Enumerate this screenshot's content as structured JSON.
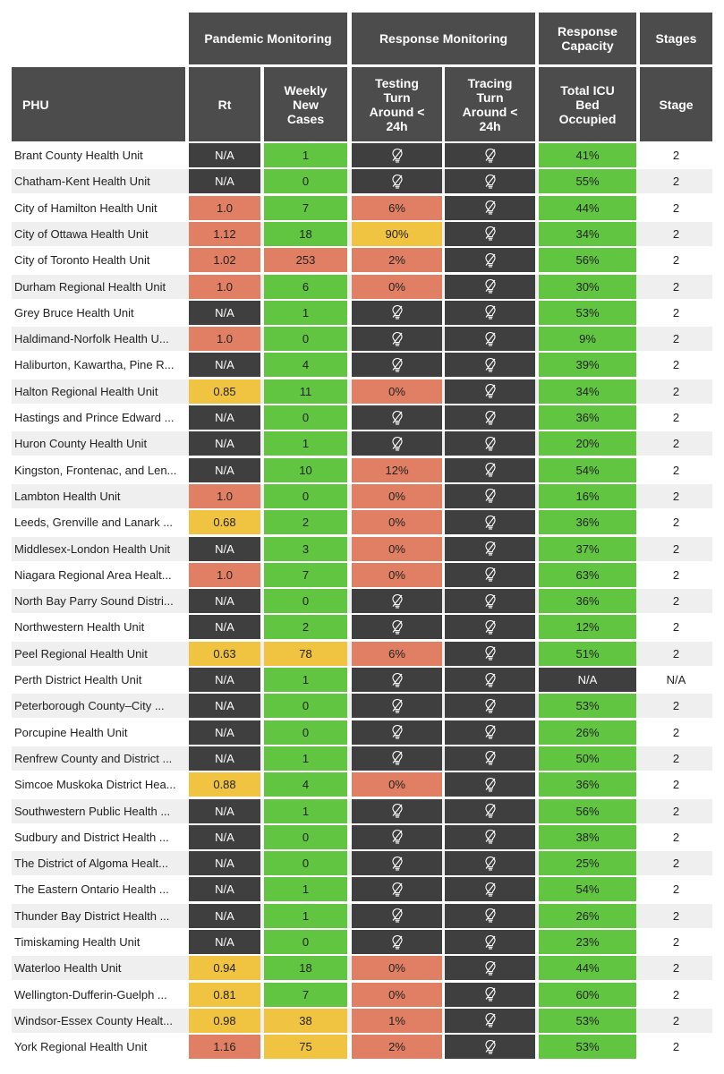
{
  "header": {
    "groups": {
      "pandemic": "Pandemic Monitoring",
      "response": "Response Monitoring",
      "capacity": "Response Capacity",
      "stages": "Stages"
    },
    "columns": {
      "phu": "PHU",
      "rt": "Rt",
      "weekly": "Weekly New Cases",
      "testing": "Testing Turn Around < 24h",
      "tracing": "Tracing Turn Around < 24h",
      "icu": "Total ICU Bed Occupied",
      "stage": "Stage"
    }
  },
  "colors": {
    "header_bg": "#4c4c4c",
    "green": "#62c542",
    "red": "#e07f63",
    "yellow": "#f0c440",
    "dark": "#3f3f3f",
    "stripe": "#efefef"
  },
  "chart_data": {
    "type": "table",
    "columns": [
      "PHU",
      "Rt",
      "Weekly New Cases",
      "Testing Turn Around < 24h",
      "Tracing Turn Around < 24h",
      "Total ICU Bed Occupied",
      "Stage"
    ],
    "rows": [
      {
        "phu": "Brant County Health Unit",
        "rt": "N/A",
        "rt_c": "dark",
        "weekly": "1",
        "weekly_c": "green",
        "testing": "",
        "testing_c": "dark",
        "tracing": "",
        "tracing_c": "dark",
        "icu": "41%",
        "icu_c": "green",
        "stage": "2"
      },
      {
        "phu": "Chatham-Kent Health Unit",
        "rt": "N/A",
        "rt_c": "dark",
        "weekly": "0",
        "weekly_c": "green",
        "testing": "",
        "testing_c": "dark",
        "tracing": "",
        "tracing_c": "dark",
        "icu": "55%",
        "icu_c": "green",
        "stage": "2"
      },
      {
        "phu": "City of Hamilton Health Unit",
        "rt": "1.0",
        "rt_c": "red",
        "weekly": "7",
        "weekly_c": "green",
        "testing": "6%",
        "testing_c": "red",
        "tracing": "",
        "tracing_c": "dark",
        "icu": "44%",
        "icu_c": "green",
        "stage": "2"
      },
      {
        "phu": "City of Ottawa Health Unit",
        "rt": "1.12",
        "rt_c": "red",
        "weekly": "18",
        "weekly_c": "green",
        "testing": "90%",
        "testing_c": "yellow",
        "tracing": "",
        "tracing_c": "dark",
        "icu": "34%",
        "icu_c": "green",
        "stage": "2"
      },
      {
        "phu": "City of Toronto Health Unit",
        "rt": "1.02",
        "rt_c": "red",
        "weekly": "253",
        "weekly_c": "red",
        "testing": "2%",
        "testing_c": "red",
        "tracing": "",
        "tracing_c": "dark",
        "icu": "56%",
        "icu_c": "green",
        "stage": "2"
      },
      {
        "phu": "Durham Regional Health Unit",
        "rt": "1.0",
        "rt_c": "red",
        "weekly": "6",
        "weekly_c": "green",
        "testing": "0%",
        "testing_c": "red",
        "tracing": "",
        "tracing_c": "dark",
        "icu": "30%",
        "icu_c": "green",
        "stage": "2"
      },
      {
        "phu": "Grey Bruce Health Unit",
        "rt": "N/A",
        "rt_c": "dark",
        "weekly": "1",
        "weekly_c": "green",
        "testing": "",
        "testing_c": "dark",
        "tracing": "",
        "tracing_c": "dark",
        "icu": "53%",
        "icu_c": "green",
        "stage": "2"
      },
      {
        "phu": "Haldimand-Norfolk Health U...",
        "rt": "1.0",
        "rt_c": "red",
        "weekly": "0",
        "weekly_c": "green",
        "testing": "",
        "testing_c": "dark",
        "tracing": "",
        "tracing_c": "dark",
        "icu": "9%",
        "icu_c": "green",
        "stage": "2"
      },
      {
        "phu": "Haliburton, Kawartha, Pine R...",
        "rt": "N/A",
        "rt_c": "dark",
        "weekly": "4",
        "weekly_c": "green",
        "testing": "",
        "testing_c": "dark",
        "tracing": "",
        "tracing_c": "dark",
        "icu": "39%",
        "icu_c": "green",
        "stage": "2"
      },
      {
        "phu": "Halton Regional Health Unit",
        "rt": "0.85",
        "rt_c": "yellow",
        "weekly": "11",
        "weekly_c": "green",
        "testing": "0%",
        "testing_c": "red",
        "tracing": "",
        "tracing_c": "dark",
        "icu": "34%",
        "icu_c": "green",
        "stage": "2"
      },
      {
        "phu": "Hastings and Prince Edward ...",
        "rt": "N/A",
        "rt_c": "dark",
        "weekly": "0",
        "weekly_c": "green",
        "testing": "",
        "testing_c": "dark",
        "tracing": "",
        "tracing_c": "dark",
        "icu": "36%",
        "icu_c": "green",
        "stage": "2"
      },
      {
        "phu": "Huron County Health Unit",
        "rt": "N/A",
        "rt_c": "dark",
        "weekly": "1",
        "weekly_c": "green",
        "testing": "",
        "testing_c": "dark",
        "tracing": "",
        "tracing_c": "dark",
        "icu": "20%",
        "icu_c": "green",
        "stage": "2"
      },
      {
        "phu": "Kingston, Frontenac, and Len...",
        "rt": "N/A",
        "rt_c": "dark",
        "weekly": "10",
        "weekly_c": "green",
        "testing": "12%",
        "testing_c": "red",
        "tracing": "",
        "tracing_c": "dark",
        "icu": "54%",
        "icu_c": "green",
        "stage": "2"
      },
      {
        "phu": "Lambton Health Unit",
        "rt": "1.0",
        "rt_c": "red",
        "weekly": "0",
        "weekly_c": "green",
        "testing": "0%",
        "testing_c": "red",
        "tracing": "",
        "tracing_c": "dark",
        "icu": "16%",
        "icu_c": "green",
        "stage": "2"
      },
      {
        "phu": "Leeds, Grenville and Lanark ...",
        "rt": "0.68",
        "rt_c": "yellow",
        "weekly": "2",
        "weekly_c": "green",
        "testing": "0%",
        "testing_c": "red",
        "tracing": "",
        "tracing_c": "dark",
        "icu": "36%",
        "icu_c": "green",
        "stage": "2"
      },
      {
        "phu": "Middlesex-London Health Unit",
        "rt": "N/A",
        "rt_c": "dark",
        "weekly": "3",
        "weekly_c": "green",
        "testing": "0%",
        "testing_c": "red",
        "tracing": "",
        "tracing_c": "dark",
        "icu": "37%",
        "icu_c": "green",
        "stage": "2"
      },
      {
        "phu": "Niagara Regional Area Healt...",
        "rt": "1.0",
        "rt_c": "red",
        "weekly": "7",
        "weekly_c": "green",
        "testing": "0%",
        "testing_c": "red",
        "tracing": "",
        "tracing_c": "dark",
        "icu": "63%",
        "icu_c": "green",
        "stage": "2"
      },
      {
        "phu": "North Bay Parry Sound Distri...",
        "rt": "N/A",
        "rt_c": "dark",
        "weekly": "0",
        "weekly_c": "green",
        "testing": "",
        "testing_c": "dark",
        "tracing": "",
        "tracing_c": "dark",
        "icu": "36%",
        "icu_c": "green",
        "stage": "2"
      },
      {
        "phu": "Northwestern Health Unit",
        "rt": "N/A",
        "rt_c": "dark",
        "weekly": "2",
        "weekly_c": "green",
        "testing": "",
        "testing_c": "dark",
        "tracing": "",
        "tracing_c": "dark",
        "icu": "12%",
        "icu_c": "green",
        "stage": "2"
      },
      {
        "phu": "Peel Regional Health Unit",
        "rt": "0.63",
        "rt_c": "yellow",
        "weekly": "78",
        "weekly_c": "yellow",
        "testing": "6%",
        "testing_c": "red",
        "tracing": "",
        "tracing_c": "dark",
        "icu": "51%",
        "icu_c": "green",
        "stage": "2"
      },
      {
        "phu": "Perth District Health Unit",
        "rt": "N/A",
        "rt_c": "dark",
        "weekly": "1",
        "weekly_c": "green",
        "testing": "",
        "testing_c": "dark",
        "tracing": "",
        "tracing_c": "dark",
        "icu": "N/A",
        "icu_c": "dark",
        "stage": "N/A"
      },
      {
        "phu": "Peterborough County–City ...",
        "rt": "N/A",
        "rt_c": "dark",
        "weekly": "0",
        "weekly_c": "green",
        "testing": "",
        "testing_c": "dark",
        "tracing": "",
        "tracing_c": "dark",
        "icu": "53%",
        "icu_c": "green",
        "stage": "2"
      },
      {
        "phu": "Porcupine Health Unit",
        "rt": "N/A",
        "rt_c": "dark",
        "weekly": "0",
        "weekly_c": "green",
        "testing": "",
        "testing_c": "dark",
        "tracing": "",
        "tracing_c": "dark",
        "icu": "26%",
        "icu_c": "green",
        "stage": "2"
      },
      {
        "phu": "Renfrew County and District ...",
        "rt": "N/A",
        "rt_c": "dark",
        "weekly": "1",
        "weekly_c": "green",
        "testing": "",
        "testing_c": "dark",
        "tracing": "",
        "tracing_c": "dark",
        "icu": "50%",
        "icu_c": "green",
        "stage": "2"
      },
      {
        "phu": "Simcoe Muskoka District Hea...",
        "rt": "0.88",
        "rt_c": "yellow",
        "weekly": "4",
        "weekly_c": "green",
        "testing": "0%",
        "testing_c": "red",
        "tracing": "",
        "tracing_c": "dark",
        "icu": "36%",
        "icu_c": "green",
        "stage": "2"
      },
      {
        "phu": "Southwestern Public Health ...",
        "rt": "N/A",
        "rt_c": "dark",
        "weekly": "1",
        "weekly_c": "green",
        "testing": "",
        "testing_c": "dark",
        "tracing": "",
        "tracing_c": "dark",
        "icu": "56%",
        "icu_c": "green",
        "stage": "2"
      },
      {
        "phu": "Sudbury and District Health ...",
        "rt": "N/A",
        "rt_c": "dark",
        "weekly": "0",
        "weekly_c": "green",
        "testing": "",
        "testing_c": "dark",
        "tracing": "",
        "tracing_c": "dark",
        "icu": "38%",
        "icu_c": "green",
        "stage": "2"
      },
      {
        "phu": "The District of Algoma Healt...",
        "rt": "N/A",
        "rt_c": "dark",
        "weekly": "0",
        "weekly_c": "green",
        "testing": "",
        "testing_c": "dark",
        "tracing": "",
        "tracing_c": "dark",
        "icu": "25%",
        "icu_c": "green",
        "stage": "2"
      },
      {
        "phu": "The Eastern Ontario Health ...",
        "rt": "N/A",
        "rt_c": "dark",
        "weekly": "1",
        "weekly_c": "green",
        "testing": "",
        "testing_c": "dark",
        "tracing": "",
        "tracing_c": "dark",
        "icu": "54%",
        "icu_c": "green",
        "stage": "2"
      },
      {
        "phu": "Thunder Bay District Health ...",
        "rt": "N/A",
        "rt_c": "dark",
        "weekly": "1",
        "weekly_c": "green",
        "testing": "",
        "testing_c": "dark",
        "tracing": "",
        "tracing_c": "dark",
        "icu": "26%",
        "icu_c": "green",
        "stage": "2"
      },
      {
        "phu": "Timiskaming Health Unit",
        "rt": "N/A",
        "rt_c": "dark",
        "weekly": "0",
        "weekly_c": "green",
        "testing": "",
        "testing_c": "dark",
        "tracing": "",
        "tracing_c": "dark",
        "icu": "23%",
        "icu_c": "green",
        "stage": "2"
      },
      {
        "phu": "Waterloo Health Unit",
        "rt": "0.94",
        "rt_c": "yellow",
        "weekly": "18",
        "weekly_c": "green",
        "testing": "0%",
        "testing_c": "red",
        "tracing": "",
        "tracing_c": "dark",
        "icu": "44%",
        "icu_c": "green",
        "stage": "2"
      },
      {
        "phu": "Wellington-Dufferin-Guelph ...",
        "rt": "0.81",
        "rt_c": "yellow",
        "weekly": "7",
        "weekly_c": "green",
        "testing": "0%",
        "testing_c": "red",
        "tracing": "",
        "tracing_c": "dark",
        "icu": "60%",
        "icu_c": "green",
        "stage": "2"
      },
      {
        "phu": "Windsor-Essex County Healt...",
        "rt": "0.98",
        "rt_c": "yellow",
        "weekly": "38",
        "weekly_c": "yellow",
        "testing": "1%",
        "testing_c": "red",
        "tracing": "",
        "tracing_c": "dark",
        "icu": "53%",
        "icu_c": "green",
        "stage": "2"
      },
      {
        "phu": "York Regional Health Unit",
        "rt": "1.16",
        "rt_c": "red",
        "weekly": "75",
        "weekly_c": "yellow",
        "testing": "2%",
        "testing_c": "red",
        "tracing": "",
        "tracing_c": "dark",
        "icu": "53%",
        "icu_c": "green",
        "stage": "2"
      }
    ]
  },
  "icons": {
    "no_data": "crossed-lightbulb-icon"
  }
}
